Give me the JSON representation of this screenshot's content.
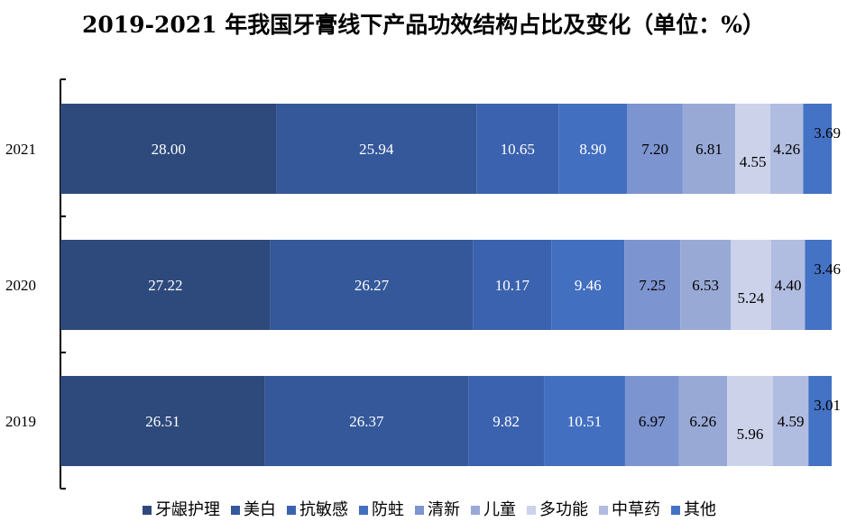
{
  "title": "2019-2021 年我国牙膏线下产品功效结构占比及变化（单位：%）",
  "chart_data": {
    "type": "bar",
    "orientation": "horizontal",
    "stacked": true,
    "title": "2019-2021 年我国牙膏线下产品功效结构占比及变化（单位：%）",
    "categories": [
      "2021",
      "2020",
      "2019"
    ],
    "series": [
      {
        "name": "牙龈护理",
        "color": "#2E4A7C",
        "label_color": "#ffffff",
        "values": [
          28.0,
          27.22,
          26.51
        ]
      },
      {
        "name": "美白",
        "color": "#34589A",
        "label_color": "#ffffff",
        "values": [
          25.94,
          26.27,
          26.37
        ]
      },
      {
        "name": "抗敏感",
        "color": "#3B62AE",
        "label_color": "#ffffff",
        "values": [
          10.65,
          10.17,
          9.82
        ]
      },
      {
        "name": "防蛀",
        "color": "#436FC0",
        "label_color": "#ffffff",
        "values": [
          8.9,
          9.46,
          10.51
        ]
      },
      {
        "name": "清新",
        "color": "#7C94CF",
        "label_color": "#000000",
        "values": [
          7.2,
          7.25,
          6.97
        ]
      },
      {
        "name": "儿童",
        "color": "#98A9D6",
        "label_color": "#000000",
        "values": [
          6.81,
          6.53,
          6.26
        ]
      },
      {
        "name": "多功能",
        "color": "#CBD2EA",
        "label_color": "#000000",
        "values": [
          4.55,
          5.24,
          5.96
        ]
      },
      {
        "name": "中草药",
        "color": "#B0BCE0",
        "label_color": "#000000",
        "values": [
          4.26,
          4.4,
          4.59
        ]
      },
      {
        "name": "其他",
        "color": "#4472C4",
        "label_color": "#000000",
        "values": [
          3.69,
          3.46,
          3.01
        ]
      }
    ],
    "value_labels": [
      [
        "28.00",
        "27.22",
        "26.51"
      ],
      [
        "25.94",
        "26.27",
        "26.37"
      ],
      [
        "10.65",
        "10.17",
        "9.82"
      ],
      [
        "8.90",
        "9.46",
        "10.51"
      ],
      [
        "7.20",
        "7.25",
        "6.97"
      ],
      [
        "6.81",
        "6.53",
        "6.26"
      ],
      [
        "4.55",
        "5.24",
        "5.96"
      ],
      [
        "4.26",
        "4.40",
        "4.59"
      ],
      [
        "3.69",
        "3.46",
        "3.01"
      ]
    ],
    "xlim": [
      0,
      100
    ],
    "grid": false,
    "legend_position": "bottom"
  }
}
